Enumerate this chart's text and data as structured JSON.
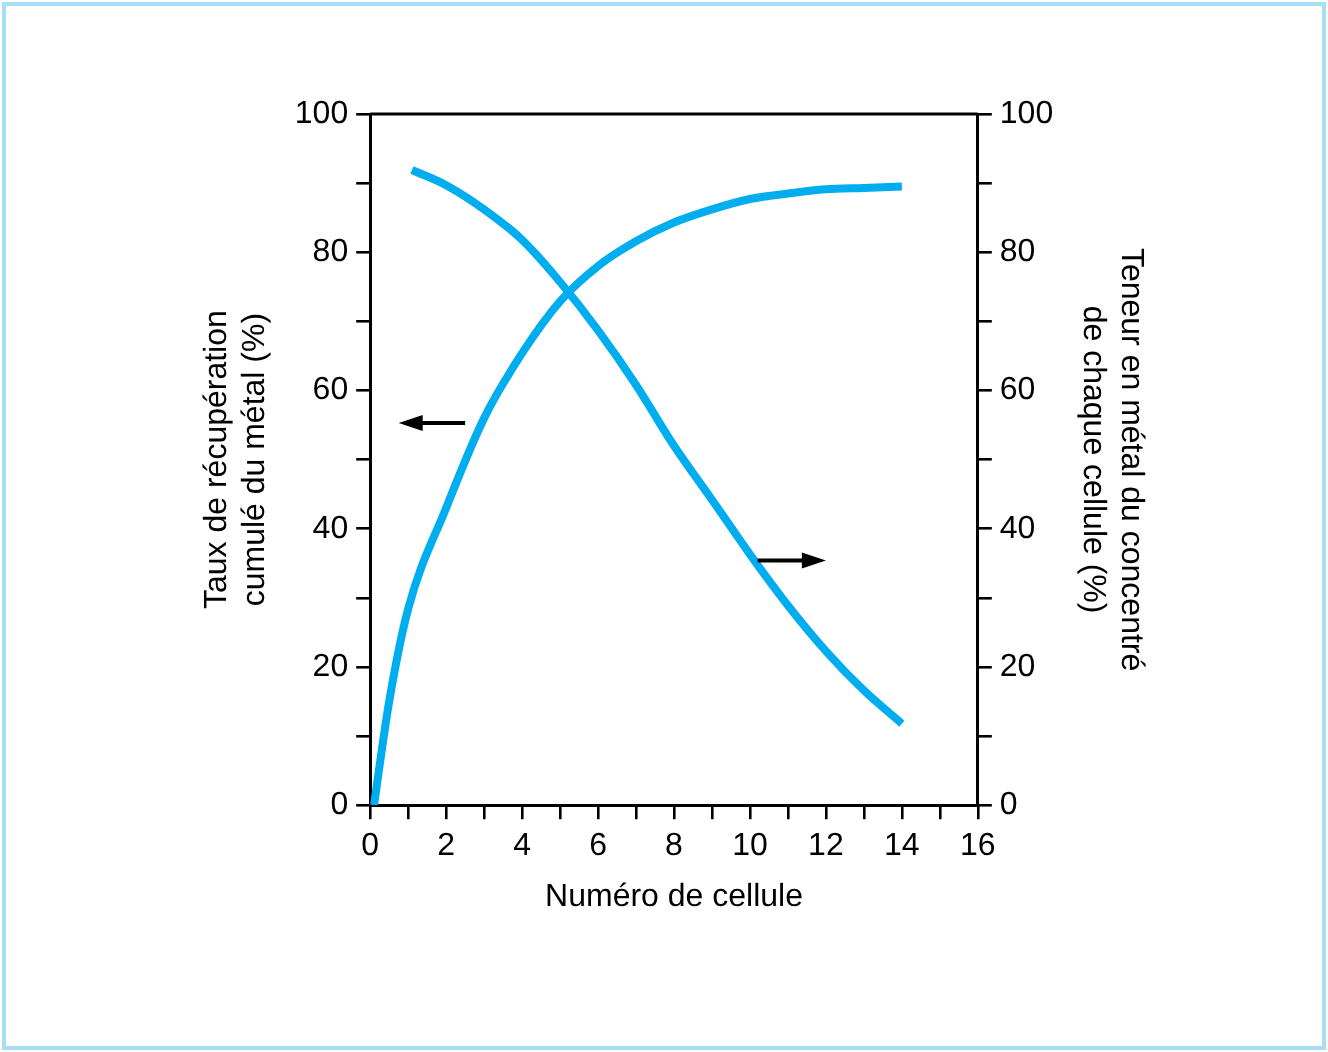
{
  "chart_data": {
    "type": "line",
    "xlabel": "Numéro de cellule",
    "ylabel": "Taux de récupération cumulé du métal (%)",
    "y2label": "Teneur en métal du concentré de chaque cellule (%)",
    "xlim": [
      0,
      16
    ],
    "xticks": [
      0,
      {
        "value": 1,
        "label": null
      },
      2,
      {
        "value": 3,
        "label": null
      },
      4,
      {
        "value": 5,
        "label": null
      },
      6,
      {
        "value": 7,
        "label": null
      },
      8,
      {
        "value": 9,
        "label": null
      },
      10,
      {
        "value": 11,
        "label": null
      },
      12,
      {
        "value": 13,
        "label": null
      },
      14,
      {
        "value": 15,
        "label": null
      },
      16
    ],
    "ylim": [
      0,
      100
    ],
    "yticks": [
      0,
      {
        "value": 10,
        "label": null
      },
      20,
      {
        "value": 30,
        "label": null
      },
      40,
      {
        "value": 50,
        "label": null
      },
      60,
      {
        "value": 70,
        "label": null
      },
      80,
      {
        "value": 90,
        "label": null
      },
      100
    ],
    "y2lim": [
      0,
      100
    ],
    "y2ticks": [
      0,
      {
        "value": 10,
        "label": null
      },
      20,
      {
        "value": 30,
        "label": null
      },
      40,
      {
        "value": 50,
        "label": null
      },
      60,
      {
        "value": 70,
        "label": null
      },
      80,
      {
        "value": 90,
        "label": null
      },
      100
    ],
    "grid": false,
    "legend": false,
    "marker": "none",
    "line_style": "solid",
    "series": [
      {
        "color": "#00aeef",
        "x": [
          0.1,
          0.5,
          1,
          2,
          3,
          4,
          5,
          6,
          7,
          8,
          9,
          10,
          11,
          12,
          13,
          14
        ],
        "values": [
          0,
          15,
          28.4,
          43,
          56,
          65.4,
          72.9,
          78,
          81.6,
          84.3,
          86.2,
          87.7,
          88.5,
          89.1,
          89.3,
          89.5
        ]
      },
      {
        "color": "#00aeef",
        "axis": "y2",
        "x": [
          1.1,
          2,
          3,
          4,
          5,
          6,
          7,
          8,
          9,
          10,
          11,
          12,
          13,
          14
        ],
        "values": [
          91.9,
          89.7,
          86.2,
          81.8,
          75.7,
          68.7,
          60.8,
          52,
          44.2,
          36.3,
          28.9,
          22.3,
          16.6,
          11.8
        ]
      }
    ]
  }
}
